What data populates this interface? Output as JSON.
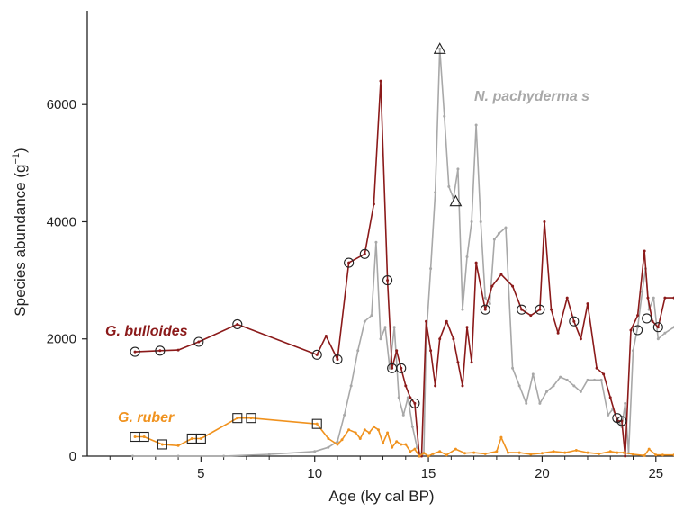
{
  "chart_data": {
    "type": "line",
    "xlabel": "Age (ky cal BP)",
    "ylabel_main": "Species abundance (g",
    "ylabel_sup": "−1",
    "ylabel_close": ")",
    "xlim": [
      0,
      25.8
    ],
    "ylim": [
      0,
      7600
    ],
    "xticks": [
      5,
      10,
      15,
      20,
      25
    ],
    "xticks_minor": [
      1,
      2,
      3,
      4,
      6,
      7,
      8,
      9,
      11,
      12,
      13,
      14,
      16,
      17,
      18,
      19,
      21,
      22,
      23,
      24
    ],
    "yticks": [
      0,
      2000,
      4000,
      6000
    ],
    "series": [
      {
        "name": "N. pachyderma s",
        "color": "#a8a8a8",
        "marker": "triangle",
        "label_color": "#a8a8a8",
        "x": [
          2.0,
          4.0,
          6.0,
          8.0,
          10.0,
          10.6,
          11.0,
          11.3,
          11.6,
          11.9,
          12.2,
          12.5,
          12.7,
          12.9,
          13.1,
          13.3,
          13.5,
          13.7,
          13.9,
          14.1,
          14.3,
          14.5,
          14.7,
          14.8,
          14.9,
          15.1,
          15.3,
          15.5,
          15.7,
          15.9,
          16.1,
          16.3,
          16.5,
          16.7,
          16.9,
          17.1,
          17.3,
          17.5,
          17.7,
          17.9,
          18.1,
          18.4,
          18.7,
          19.0,
          19.3,
          19.6,
          19.9,
          20.2,
          20.5,
          20.8,
          21.1,
          21.4,
          21.7,
          22.0,
          22.3,
          22.6,
          22.9,
          23.1,
          23.3,
          23.5,
          23.65,
          23.8,
          24.0,
          24.2,
          24.4,
          24.55,
          24.7,
          24.9,
          25.1,
          25.4,
          25.8
        ],
        "y": [
          0,
          0,
          0,
          30,
          80,
          150,
          250,
          700,
          1200,
          1800,
          2300,
          2400,
          3650,
          2000,
          2200,
          1500,
          2200,
          1000,
          700,
          1000,
          500,
          150,
          0,
          50,
          2000,
          3200,
          4500,
          6950,
          5800,
          4600,
          4400,
          4900,
          2500,
          3400,
          4000,
          5650,
          4000,
          2700,
          2600,
          3700,
          3800,
          3900,
          1500,
          1200,
          900,
          1400,
          900,
          1100,
          1200,
          1350,
          1300,
          1200,
          1100,
          1300,
          1300,
          1300,
          700,
          800,
          650,
          500,
          900,
          50,
          1800,
          2200,
          2800,
          3200,
          2500,
          2700,
          2000,
          2100,
          2200
        ],
        "markers_x": [
          15.5,
          16.2
        ],
        "markers_y": [
          6950,
          4350
        ]
      },
      {
        "name": "G. bulloides",
        "color": "#8b1a1a",
        "marker": "circle",
        "label_color": "#8b1a1a",
        "x": [
          2.1,
          3.2,
          4.0,
          4.9,
          6.6,
          10.1,
          10.5,
          11.0,
          11.5,
          12.2,
          12.6,
          12.9,
          13.2,
          13.4,
          13.6,
          13.8,
          14.0,
          14.2,
          14.4,
          14.6,
          14.7,
          14.9,
          15.1,
          15.3,
          15.5,
          15.8,
          16.1,
          16.3,
          16.5,
          16.7,
          16.9,
          17.1,
          17.5,
          17.8,
          18.2,
          18.7,
          19.1,
          19.5,
          19.9,
          20.1,
          20.4,
          20.7,
          21.1,
          21.4,
          21.7,
          22.0,
          22.4,
          22.7,
          23.0,
          23.3,
          23.5,
          23.65,
          23.9,
          24.2,
          24.5,
          24.65,
          24.85,
          25.1,
          25.4,
          25.8
        ],
        "y": [
          1780,
          1800,
          1810,
          1950,
          2250,
          1730,
          2050,
          1650,
          3300,
          3450,
          4300,
          6400,
          3000,
          1500,
          1800,
          1500,
          1200,
          1000,
          900,
          0,
          0,
          2300,
          1800,
          1200,
          2000,
          2300,
          2000,
          1600,
          1200,
          2200,
          1600,
          3300,
          2500,
          2900,
          3100,
          2900,
          2500,
          2400,
          2500,
          4000,
          2500,
          2100,
          2700,
          2300,
          2000,
          2600,
          1500,
          1400,
          1000,
          600,
          600,
          0,
          2150,
          2400,
          3500,
          2700,
          2300,
          2200,
          2700,
          2700
        ],
        "markers_x": [
          2.1,
          3.2,
          4.9,
          6.6,
          10.1,
          11.0,
          11.5,
          12.2,
          13.2,
          13.4,
          13.8,
          14.4,
          17.5,
          19.1,
          19.9,
          21.4,
          23.3,
          23.5,
          24.2,
          24.6,
          25.1
        ],
        "markers_y": [
          1780,
          1800,
          1950,
          2250,
          1730,
          1650,
          3300,
          3450,
          3000,
          1500,
          1500,
          900,
          2500,
          2500,
          2500,
          2300,
          650,
          600,
          2150,
          2350,
          2200
        ]
      },
      {
        "name": "G. ruber",
        "color": "#f0921e",
        "marker": "square",
        "label_color": "#f0921e",
        "x": [
          2.1,
          2.5,
          3.3,
          4.0,
          4.6,
          5.0,
          6.6,
          7.2,
          10.1,
          10.6,
          11.0,
          11.2,
          11.5,
          11.8,
          12.0,
          12.2,
          12.4,
          12.6,
          12.8,
          13.0,
          13.2,
          13.4,
          13.6,
          13.8,
          14.0,
          14.2,
          14.4,
          14.6,
          14.8,
          15.0,
          15.2,
          15.5,
          15.8,
          16.2,
          16.6,
          17.0,
          17.5,
          18.0,
          18.2,
          18.5,
          19.0,
          19.5,
          20.0,
          20.5,
          21.0,
          21.5,
          22.0,
          22.5,
          23.0,
          23.3,
          23.6,
          24.0,
          24.5,
          24.7,
          25.0,
          25.3,
          25.8
        ],
        "y": [
          330,
          330,
          200,
          180,
          300,
          300,
          650,
          650,
          550,
          300,
          200,
          280,
          450,
          400,
          300,
          450,
          400,
          500,
          450,
          220,
          400,
          150,
          250,
          200,
          200,
          80,
          120,
          0,
          50,
          0,
          40,
          80,
          20,
          120,
          50,
          60,
          40,
          80,
          320,
          60,
          60,
          30,
          50,
          80,
          60,
          100,
          60,
          40,
          80,
          60,
          60,
          30,
          10,
          120,
          20,
          20,
          20
        ],
        "markers_x": [
          2.1,
          2.5,
          3.3,
          4.6,
          5.0,
          6.6,
          7.2,
          10.1
        ],
        "markers_y": [
          330,
          330,
          200,
          300,
          300,
          650,
          650,
          550
        ]
      }
    ]
  }
}
